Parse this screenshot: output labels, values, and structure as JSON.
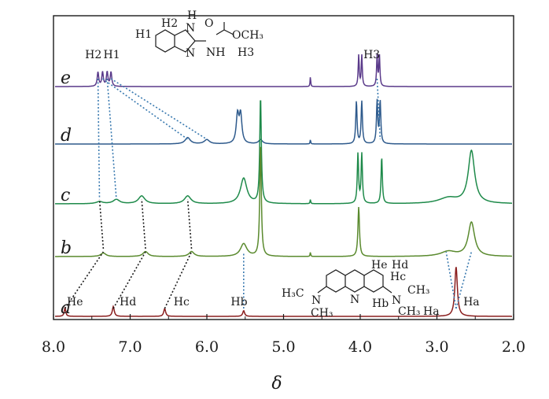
{
  "chart_data": {
    "type": "line",
    "title": "",
    "xlabel": "δ",
    "ylabel": "",
    "xlim": [
      8.0,
      2.0
    ],
    "x_reversed": true,
    "grid": false,
    "x_ticks": [
      {
        "value": 8.0,
        "label": "8.0"
      },
      {
        "value": 7.0,
        "label": "7.0"
      },
      {
        "value": 6.0,
        "label": "6.0"
      },
      {
        "value": 5.0,
        "label": "5.0"
      },
      {
        "value": 4.0,
        "label": "4.0"
      },
      {
        "value": 3.0,
        "label": "3.0"
      },
      {
        "value": 2.0,
        "label": "2.0"
      }
    ],
    "series": [
      {
        "name": "e",
        "color": "#5a3a8a",
        "peaks": [
          {
            "x": 7.42,
            "h": 1.0,
            "w": 0.012
          },
          {
            "x": 7.36,
            "h": 1.0,
            "w": 0.012
          },
          {
            "x": 7.3,
            "h": 1.0,
            "w": 0.012
          },
          {
            "x": 7.25,
            "h": 1.0,
            "w": 0.012
          },
          {
            "x": 4.65,
            "h": 0.7,
            "w": 0.005
          },
          {
            "x": 4.02,
            "h": 2.2,
            "w": 0.008
          },
          {
            "x": 3.98,
            "h": 2.2,
            "w": 0.008
          },
          {
            "x": 3.78,
            "h": 2.2,
            "w": 0.008
          },
          {
            "x": 3.75,
            "h": 2.2,
            "w": 0.008
          }
        ]
      },
      {
        "name": "d",
        "color": "#2e5a8c",
        "peaks": [
          {
            "x": 6.25,
            "h": 0.45,
            "w": 0.04
          },
          {
            "x": 6.0,
            "h": 0.3,
            "w": 0.04
          },
          {
            "x": 5.6,
            "h": 2.0,
            "w": 0.02
          },
          {
            "x": 5.56,
            "h": 2.0,
            "w": 0.02
          },
          {
            "x": 5.3,
            "h": 0.3,
            "w": 0.03
          },
          {
            "x": 4.65,
            "h": 0.3,
            "w": 0.005
          },
          {
            "x": 4.05,
            "h": 3.0,
            "w": 0.01
          },
          {
            "x": 3.98,
            "h": 3.0,
            "w": 0.01
          },
          {
            "x": 3.78,
            "h": 3.0,
            "w": 0.01
          },
          {
            "x": 3.74,
            "h": 3.0,
            "w": 0.01
          }
        ]
      },
      {
        "name": "c",
        "color": "#1e8a4a",
        "peaks": [
          {
            "x": 7.4,
            "h": 0.15,
            "w": 0.05
          },
          {
            "x": 7.18,
            "h": 0.3,
            "w": 0.05
          },
          {
            "x": 6.85,
            "h": 0.55,
            "w": 0.05
          },
          {
            "x": 6.25,
            "h": 0.55,
            "w": 0.05
          },
          {
            "x": 5.52,
            "h": 1.8,
            "w": 0.05
          },
          {
            "x": 5.3,
            "h": 7.5,
            "w": 0.012
          },
          {
            "x": 4.65,
            "h": 0.3,
            "w": 0.005
          },
          {
            "x": 4.03,
            "h": 3.5,
            "w": 0.01
          },
          {
            "x": 3.98,
            "h": 3.5,
            "w": 0.01
          },
          {
            "x": 3.72,
            "h": 3.3,
            "w": 0.01
          },
          {
            "x": 2.85,
            "h": 0.4,
            "w": 0.15
          },
          {
            "x": 2.55,
            "h": 3.7,
            "w": 0.05
          }
        ]
      },
      {
        "name": "b",
        "color": "#5a8a2e",
        "peaks": [
          {
            "x": 7.35,
            "h": 0.25,
            "w": 0.04
          },
          {
            "x": 6.8,
            "h": 0.35,
            "w": 0.04
          },
          {
            "x": 6.2,
            "h": 0.35,
            "w": 0.04
          },
          {
            "x": 5.52,
            "h": 0.9,
            "w": 0.05
          },
          {
            "x": 5.3,
            "h": 8.0,
            "w": 0.012
          },
          {
            "x": 4.65,
            "h": 0.3,
            "w": 0.005
          },
          {
            "x": 4.02,
            "h": 3.5,
            "w": 0.012
          },
          {
            "x": 2.85,
            "h": 0.35,
            "w": 0.12
          },
          {
            "x": 2.55,
            "h": 2.4,
            "w": 0.05
          }
        ]
      },
      {
        "name": "a",
        "color": "#8a1e1e",
        "peaks": [
          {
            "x": 7.85,
            "h": 0.6,
            "w": 0.012
          },
          {
            "x": 7.22,
            "h": 0.7,
            "w": 0.015
          },
          {
            "x": 6.55,
            "h": 0.55,
            "w": 0.015
          },
          {
            "x": 5.52,
            "h": 0.4,
            "w": 0.015
          },
          {
            "x": 2.75,
            "h": 3.5,
            "w": 0.02
          }
        ]
      }
    ],
    "peak_labels": [
      {
        "text": "He",
        "x": 7.72,
        "trace": "a"
      },
      {
        "text": "Hd",
        "x": 7.03,
        "trace": "a"
      },
      {
        "text": "Hc",
        "x": 6.33,
        "trace": "a"
      },
      {
        "text": "Hb",
        "x": 5.58,
        "trace": "a"
      },
      {
        "text": "Ha",
        "x": 2.55,
        "trace": "a"
      },
      {
        "text": "H2",
        "x": 7.48,
        "trace": "e"
      },
      {
        "text": "H1",
        "x": 7.24,
        "trace": "e"
      },
      {
        "text": "H3",
        "x": 3.85,
        "trace": "e"
      }
    ],
    "structure_a": {
      "labels": [
        "He",
        "Hd",
        "Hc",
        "CH₃",
        "Hb",
        "CH₃",
        "Ha",
        "H₃C",
        "N",
        "N",
        "N",
        "CH₃"
      ]
    },
    "structure_e": {
      "labels": [
        "H2",
        "H1",
        "H",
        "N",
        "N",
        "O",
        "OCH₃",
        "NH",
        "H3"
      ]
    }
  }
}
